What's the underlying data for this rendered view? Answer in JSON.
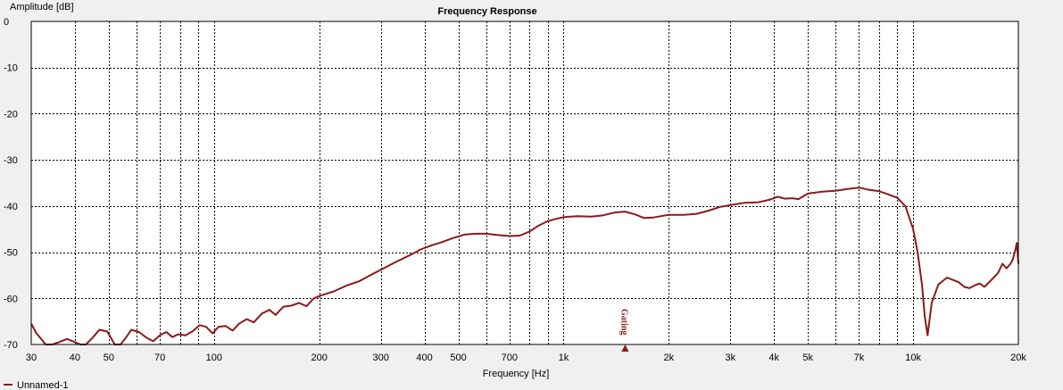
{
  "chart_data": {
    "type": "line",
    "title": "Frequency Response",
    "xlabel": "Frequency [Hz]",
    "ylabel": "Amplitude [dB]",
    "x_scale": "log",
    "xlim": [
      30,
      20000
    ],
    "ylim": [
      -70,
      0
    ],
    "grid": true,
    "y_ticks": [
      "0",
      "-10",
      "-20",
      "-30",
      "-40",
      "-50",
      "-60",
      "-70"
    ],
    "y_tick_values": [
      0,
      -10,
      -20,
      -30,
      -40,
      -50,
      -60,
      -70
    ],
    "x_ticks": [
      "30",
      "40",
      "50",
      "70",
      "100",
      "200",
      "300",
      "400",
      "500",
      "700",
      "1k",
      "2k",
      "3k",
      "4k",
      "5k",
      "7k",
      "10k",
      "20k"
    ],
    "x_tick_values": [
      30,
      40,
      50,
      70,
      100,
      200,
      300,
      400,
      500,
      700,
      1000,
      2000,
      3000,
      4000,
      5000,
      7000,
      10000,
      20000
    ],
    "x_grid_values": [
      30,
      40,
      50,
      60,
      70,
      80,
      90,
      100,
      200,
      300,
      400,
      500,
      600,
      700,
      800,
      900,
      1000,
      2000,
      3000,
      4000,
      5000,
      6000,
      7000,
      8000,
      9000,
      10000,
      20000
    ],
    "marker": {
      "label": "Gating",
      "x": 1500
    },
    "legend_position": "bottom-left",
    "series": [
      {
        "name": "Unnamed-1",
        "color": "#8b1a1a",
        "x": [
          30,
          31,
          33,
          34.5,
          36,
          38,
          40,
          41.5,
          43,
          45,
          47,
          49.5,
          52,
          54,
          56,
          58,
          61,
          64,
          67,
          70,
          73,
          76,
          79,
          83,
          87,
          91,
          95,
          99,
          103,
          108,
          113,
          118,
          124,
          130,
          137,
          144,
          150,
          158,
          166,
          175,
          184,
          193,
          200,
          220,
          240,
          260,
          280,
          300,
          330,
          360,
          390,
          420,
          450,
          480,
          520,
          560,
          600,
          650,
          700,
          750,
          800,
          850,
          900,
          950,
          1000,
          1100,
          1200,
          1300,
          1400,
          1500,
          1600,
          1700,
          1800,
          2000,
          2200,
          2400,
          2600,
          2800,
          3000,
          3300,
          3600,
          3900,
          4100,
          4300,
          4500,
          4700,
          5000,
          5500,
          6000,
          6500,
          7000,
          7500,
          8000,
          8500,
          9000,
          9500,
          10000,
          10300,
          10600,
          10800,
          11000,
          11300,
          11800,
          12500,
          13500,
          14000,
          14500,
          15000,
          15500,
          16000,
          16500,
          17000,
          17500,
          18000,
          18500,
          19000,
          19300,
          19600,
          19800,
          20000
        ],
        "values": [
          -65.5,
          -67.5,
          -71,
          -70.5,
          -69.5,
          -68.8,
          -69.5,
          -71,
          -70.5,
          -68.5,
          -66.8,
          -67.2,
          -70,
          -70.5,
          -68.5,
          -66.8,
          -67.3,
          -68.5,
          -69.3,
          -68,
          -67.3,
          -68.4,
          -67.8,
          -68,
          -67.1,
          -65.8,
          -66.2,
          -67.6,
          -66.2,
          -66,
          -67,
          -65.5,
          -64.5,
          -65.2,
          -63.3,
          -62.5,
          -63.6,
          -61.8,
          -61.6,
          -61,
          -61.7,
          -60,
          -59.5,
          -58.5,
          -57.2,
          -56.3,
          -55,
          -53.8,
          -52.2,
          -50.8,
          -49.4,
          -48.5,
          -47.8,
          -47,
          -46.2,
          -46,
          -46,
          -46.3,
          -46.5,
          -46.4,
          -45.5,
          -44.2,
          -43.3,
          -42.8,
          -42.4,
          -42.2,
          -42.3,
          -42,
          -41.4,
          -41.2,
          -41.8,
          -42.6,
          -42.5,
          -41.9,
          -41.9,
          -41.7,
          -41,
          -40.2,
          -39.8,
          -39.3,
          -39.2,
          -38.6,
          -38,
          -38.4,
          -38.3,
          -38.5,
          -37.3,
          -36.9,
          -36.7,
          -36.3,
          -36,
          -36.5,
          -36.8,
          -37.5,
          -38.2,
          -40,
          -45,
          -50,
          -57,
          -64,
          -68,
          -61,
          -57,
          -55.5,
          -56.5,
          -57.5,
          -57.8,
          -57.2,
          -56.8,
          -57.5,
          -56.5,
          -55.5,
          -54.5,
          -52.5,
          -53.5,
          -52.5,
          -51.5,
          -49.5,
          -48,
          -52.5
        ]
      }
    ]
  }
}
